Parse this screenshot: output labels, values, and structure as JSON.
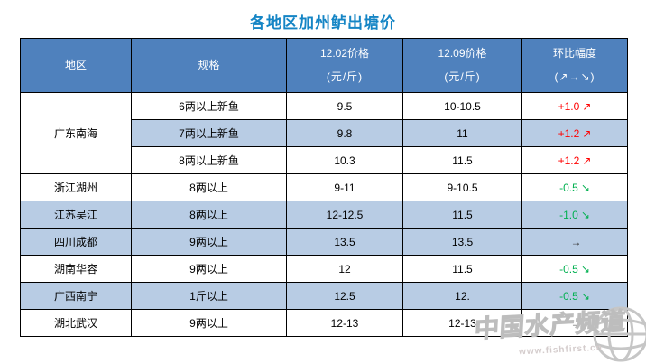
{
  "page": {
    "title": "各地区加州鲈出塘价"
  },
  "colors": {
    "title_text": "#1585C5",
    "header_bg": "#4F81BD",
    "header_text": "#FFFFFF",
    "shaded_row_bg": "#B8CCE4",
    "up_change": "#FF0000",
    "down_change": "#00B050",
    "flat_change": "#333333",
    "border": "#000000"
  },
  "table": {
    "header": {
      "region": "地区",
      "spec": "规格",
      "price1_line1": "12.02价格",
      "price1_line2": "(元/斤)",
      "price2_line1": "12.09价格",
      "price2_line2": "(元/斤)",
      "change_line1": "环比幅度",
      "change_line2": "(↗→↘)"
    },
    "rows": [
      {
        "region": "广东南海",
        "region_rowspan": 3,
        "spec": "6两以上新鱼",
        "price_1202": "9.5",
        "price_1209": "10-10.5",
        "change_value": "+1.0",
        "change_arrow": "↗",
        "change_dir": "up",
        "shaded": false
      },
      {
        "spec": "7两以上新鱼",
        "price_1202": "9.8",
        "price_1209": "11",
        "change_value": "+1.2",
        "change_arrow": "↗",
        "change_dir": "up",
        "shaded": true
      },
      {
        "spec": "8两以上新鱼",
        "price_1202": "10.3",
        "price_1209": "11.5",
        "change_value": "+1.2",
        "change_arrow": "↗",
        "change_dir": "up",
        "shaded": false
      },
      {
        "region": "浙江湖州",
        "spec": "8两以上",
        "price_1202": "9-11",
        "price_1209": "9-10.5",
        "change_value": "-0.5",
        "change_arrow": "↘",
        "change_dir": "down",
        "shaded": false
      },
      {
        "region": "江苏吴江",
        "spec": "8两以上",
        "price_1202": "12-12.5",
        "price_1209": "11.5",
        "change_value": "-1.0",
        "change_arrow": "↘",
        "change_dir": "down",
        "shaded": true
      },
      {
        "region": "四川成都",
        "spec": "9两以上",
        "price_1202": "13.5",
        "price_1209": "13.5",
        "change_value": "",
        "change_arrow": "→",
        "change_dir": "flat",
        "shaded": true
      },
      {
        "region": "湖南华容",
        "spec": "9两以上",
        "price_1202": "12",
        "price_1209": "11.5",
        "change_value": "-0.5",
        "change_arrow": "↘",
        "change_dir": "down",
        "shaded": false
      },
      {
        "region": "广西南宁",
        "spec": "1斤以上",
        "price_1202": "12.5",
        "price_1209": "12.",
        "change_value": "-0.5",
        "change_arrow": "↘",
        "change_dir": "down",
        "shaded": true
      },
      {
        "region": "湖北武汉",
        "spec": "9两以上",
        "price_1202": "12-13",
        "price_1209": "12-13",
        "change_value": "",
        "change_arrow": "→",
        "change_dir": "flat",
        "shaded": false
      }
    ]
  },
  "watermark": {
    "text": "中国水产频道",
    "url": "www.fishfirst.cn"
  }
}
